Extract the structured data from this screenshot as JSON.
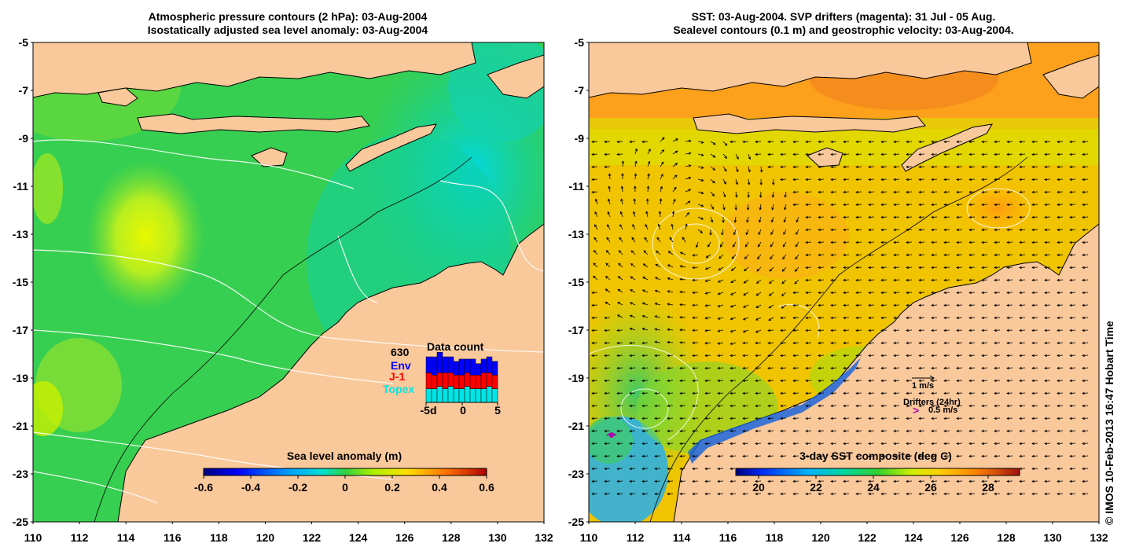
{
  "left_panel": {
    "title_line1": "Atmospheric pressure contours (2 hPa): 03-Aug-2004",
    "title_line2": "Isostatically adjusted sea level anomaly: 03-Aug-2004",
    "colorbar_label": "Sea level anomaly (m)",
    "colorbar_ticks": [
      "-0.6",
      "-0.4",
      "-0.2",
      "0",
      "0.2",
      "0.4",
      "0.6"
    ],
    "data_count": {
      "total": "630",
      "title": "Data count",
      "legend": [
        {
          "label": "Env",
          "color": "#0000ff"
        },
        {
          "label": "J-1",
          "color": "#ff0000"
        },
        {
          "label": "Topex",
          "color": "#00e5e5"
        }
      ],
      "x_ticks": [
        "-5d",
        "0",
        "5"
      ],
      "bars": [
        {
          "topex": 0.3,
          "j1": 0.35,
          "env": 0.35
        },
        {
          "topex": 0.3,
          "j1": 0.3,
          "env": 0.4
        },
        {
          "topex": 0.35,
          "j1": 0.3,
          "env": 0.45
        },
        {
          "topex": 0.3,
          "j1": 0.35,
          "env": 0.35
        },
        {
          "topex": 0.35,
          "j1": 0.3,
          "env": 0.35
        },
        {
          "topex": 0.3,
          "j1": 0.3,
          "env": 0.3
        },
        {
          "topex": 0.3,
          "j1": 0.3,
          "env": 0.35
        },
        {
          "topex": 0.35,
          "j1": 0.3,
          "env": 0.3
        },
        {
          "topex": 0.3,
          "j1": 0.3,
          "env": 0.35
        },
        {
          "topex": 0.3,
          "j1": 0.3,
          "env": 0.25
        },
        {
          "topex": 0.3,
          "j1": 0.35,
          "env": 0.3
        },
        {
          "topex": 0.35,
          "j1": 0.3,
          "env": 0.35
        },
        {
          "topex": 0.3,
          "j1": 0.3,
          "env": 0.3
        }
      ]
    }
  },
  "right_panel": {
    "title_line1": "SST: 03-Aug-2004. SVP drifters (magenta): 31 Jul - 05 Aug.",
    "title_line2": "Sealevel contours (0.1 m) and geostrophic velocity: 03-Aug-2004.",
    "colorbar_label": "3-day SST composite (deg C)",
    "colorbar_ticks": [
      "20",
      "22",
      "24",
      "26",
      "28"
    ],
    "velocity_scale_label": "1 m/s",
    "drifters_label": "Drifters (24hr)",
    "drifters_speed_label": "0.5 m/s"
  },
  "lat_ticks": [
    "-5",
    "-7",
    "-9",
    "-11",
    "-13",
    "-15",
    "-17",
    "-19",
    "-21",
    "-23",
    "-25"
  ],
  "lon_ticks": [
    "110",
    "112",
    "114",
    "116",
    "118",
    "120",
    "122",
    "124",
    "126",
    "128",
    "130",
    "132"
  ],
  "credit": "© IMOS 10-Feb-2013 16:47 Hobart Time",
  "colors": {
    "land": "#f9c89b",
    "sla_ocean": "#37cf51",
    "sst_ocean": "#f0c400",
    "drifter": "#b000b0"
  }
}
